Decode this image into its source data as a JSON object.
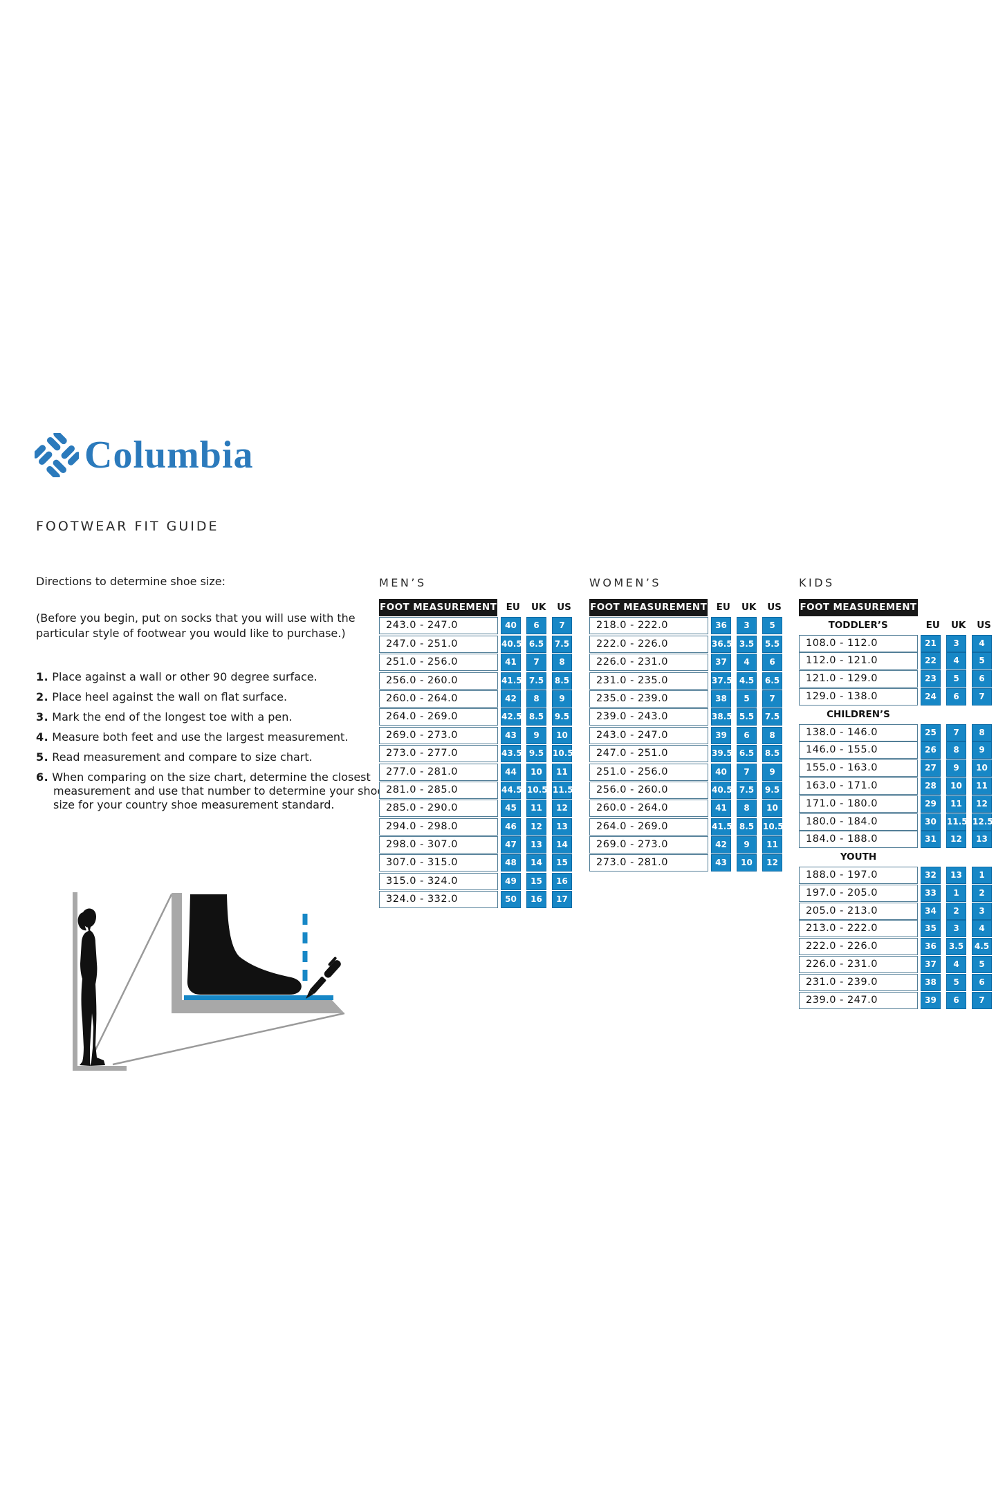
{
  "brand": {
    "name": "Columbia",
    "tagline": "FOOTWEAR FIT GUIDE"
  },
  "directions": {
    "title": "Directions to determine shoe size:",
    "note": "(Before you begin, put on socks that you will use with the particular style of footwear you would like to purchase.)",
    "steps": [
      "Place against a wall or other 90 degree surface.",
      "Place heel against the wall on flat surface.",
      "Mark the end of the longest toe with a pen.",
      "Measure both feet and use the largest measurement.",
      "Read measurement and compare to size chart.",
      "When comparing on the size chart, determine the closest measurement and use that number to determine your shoe size for your country shoe measurement standard."
    ]
  },
  "tables": {
    "header_label": "FOOT MEASUREMENT",
    "columns": [
      "EU",
      "UK",
      "US"
    ],
    "mens": {
      "title": "MEN’S",
      "rows": [
        [
          "243.0 - 247.0",
          "40",
          "6",
          "7"
        ],
        [
          "247.0 - 251.0",
          "40.5",
          "6.5",
          "7.5"
        ],
        [
          "251.0 - 256.0",
          "41",
          "7",
          "8"
        ],
        [
          "256.0 - 260.0",
          "41.5",
          "7.5",
          "8.5"
        ],
        [
          "260.0 - 264.0",
          "42",
          "8",
          "9"
        ],
        [
          "264.0 - 269.0",
          "42.5",
          "8.5",
          "9.5"
        ],
        [
          "269.0 - 273.0",
          "43",
          "9",
          "10"
        ],
        [
          "273.0 - 277.0",
          "43.5",
          "9.5",
          "10.5"
        ],
        [
          "277.0 - 281.0",
          "44",
          "10",
          "11"
        ],
        [
          "281.0 - 285.0",
          "44.5",
          "10.5",
          "11.5"
        ],
        [
          "285.0 - 290.0",
          "45",
          "11",
          "12"
        ],
        [
          "294.0 - 298.0",
          "46",
          "12",
          "13"
        ],
        [
          "298.0 - 307.0",
          "47",
          "13",
          "14"
        ],
        [
          "307.0 - 315.0",
          "48",
          "14",
          "15"
        ],
        [
          "315.0 - 324.0",
          "49",
          "15",
          "16"
        ],
        [
          "324.0 - 332.0",
          "50",
          "16",
          "17"
        ]
      ]
    },
    "womens": {
      "title": "WOMEN’S",
      "rows": [
        [
          "218.0 - 222.0",
          "36",
          "3",
          "5"
        ],
        [
          "222.0 - 226.0",
          "36.5",
          "3.5",
          "5.5"
        ],
        [
          "226.0 - 231.0",
          "37",
          "4",
          "6"
        ],
        [
          "231.0 - 235.0",
          "37.5",
          "4.5",
          "6.5"
        ],
        [
          "235.0 - 239.0",
          "38",
          "5",
          "7"
        ],
        [
          "239.0 - 243.0",
          "38.5",
          "5.5",
          "7.5"
        ],
        [
          "243.0 - 247.0",
          "39",
          "6",
          "8"
        ],
        [
          "247.0 - 251.0",
          "39.5",
          "6.5",
          "8.5"
        ],
        [
          "251.0 - 256.0",
          "40",
          "7",
          "9"
        ],
        [
          "256.0 - 260.0",
          "40.5",
          "7.5",
          "9.5"
        ],
        [
          "260.0 - 264.0",
          "41",
          "8",
          "10"
        ],
        [
          "264.0 - 269.0",
          "41.5",
          "8.5",
          "10.5"
        ],
        [
          "269.0 - 273.0",
          "42",
          "9",
          "11"
        ],
        [
          "273.0 - 281.0",
          "43",
          "10",
          "12"
        ]
      ]
    },
    "kids": {
      "title": "KIDS",
      "groups": [
        {
          "label": "TODDLER’S",
          "rows": [
            [
              "108.0 - 112.0",
              "21",
              "3",
              "4"
            ],
            [
              "112.0 - 121.0",
              "22",
              "4",
              "5"
            ],
            [
              "121.0 - 129.0",
              "23",
              "5",
              "6"
            ],
            [
              "129.0 - 138.0",
              "24",
              "6",
              "7"
            ]
          ]
        },
        {
          "label": "CHILDREN’S",
          "rows": [
            [
              "138.0 - 146.0",
              "25",
              "7",
              "8"
            ],
            [
              "146.0 - 155.0",
              "26",
              "8",
              "9"
            ],
            [
              "155.0 - 163.0",
              "27",
              "9",
              "10"
            ],
            [
              "163.0 - 171.0",
              "28",
              "10",
              "11"
            ],
            [
              "171.0 - 180.0",
              "29",
              "11",
              "12"
            ],
            [
              "180.0 - 184.0",
              "30",
              "11.5",
              "12.5"
            ],
            [
              "184.0 - 188.0",
              "31",
              "12",
              "13"
            ]
          ]
        },
        {
          "label": "YOUTH",
          "rows": [
            [
              "188.0 - 197.0",
              "32",
              "13",
              "1"
            ],
            [
              "197.0 - 205.0",
              "33",
              "1",
              "2"
            ],
            [
              "205.0 - 213.0",
              "34",
              "2",
              "3"
            ],
            [
              "213.0 - 222.0",
              "35",
              "3",
              "4"
            ],
            [
              "222.0 - 226.0",
              "36",
              "3.5",
              "4.5"
            ],
            [
              "226.0 - 231.0",
              "37",
              "4",
              "5"
            ],
            [
              "231.0 - 239.0",
              "38",
              "5",
              "6"
            ],
            [
              "239.0 - 247.0",
              "39",
              "6",
              "7"
            ]
          ]
        }
      ]
    }
  },
  "colors": {
    "table_cell_blue": "#1787c6",
    "logo_blue": "#2b7abc",
    "header_black": "#181818",
    "illustration_gray": "#a8a8a8",
    "text_black": "#1a1a1a"
  }
}
